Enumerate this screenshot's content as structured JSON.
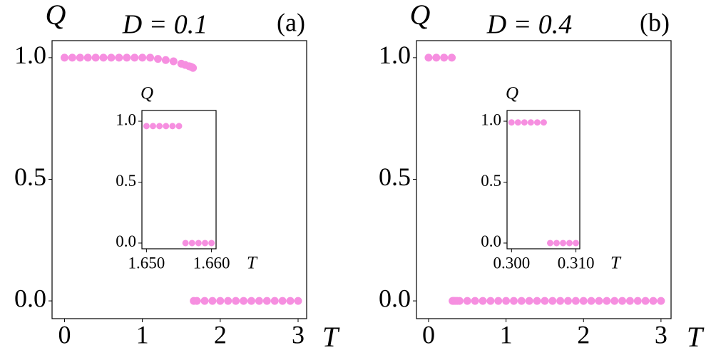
{
  "chart_data": [
    {
      "type": "scatter",
      "title": "D = 0.1",
      "panel": "(a)",
      "ylabel": "Q",
      "xlabel": "T",
      "color": "#f68fe0",
      "x": [
        0,
        0.1,
        0.2,
        0.3,
        0.4,
        0.5,
        0.6,
        0.7,
        0.8,
        0.9,
        1.0,
        1.1,
        1.2,
        1.3,
        1.4,
        1.5,
        1.55,
        1.6,
        1.62,
        1.64,
        1.65,
        1.66,
        1.7,
        1.8,
        1.9,
        2.0,
        2.1,
        2.2,
        2.3,
        2.4,
        2.5,
        2.6,
        2.7,
        2.8,
        2.9,
        3.0
      ],
      "values": [
        1,
        1,
        1,
        1,
        1,
        1,
        1,
        1,
        1,
        1,
        1,
        1,
        0.995,
        0.99,
        0.985,
        0.975,
        0.97,
        0.965,
        0.963,
        0.96,
        0.958,
        0,
        0,
        0,
        0,
        0,
        0,
        0,
        0,
        0,
        0,
        0,
        0,
        0,
        0,
        0
      ],
      "xlim": [
        -0.16,
        3.11
      ],
      "ylim": [
        -0.073,
        1.07
      ],
      "xticks": [
        0,
        1,
        2,
        3
      ],
      "yticks": [
        {
          "value": 0,
          "label": "0.0"
        },
        {
          "value": 0.5,
          "label": "0.5"
        },
        {
          "value": 1,
          "label": "1.0"
        }
      ]
    },
    {
      "type": "scatter",
      "ylabel": "Q",
      "xlabel": "T",
      "color": "#f68fe0",
      "x": [
        1.65,
        1.651,
        1.652,
        1.653,
        1.654,
        1.655,
        1.656,
        1.657,
        1.658,
        1.659,
        1.66
      ],
      "values": [
        0.96,
        0.96,
        0.96,
        0.96,
        0.96,
        0.96,
        0,
        0,
        0,
        0,
        0
      ],
      "xlim": [
        1.6493,
        1.6607
      ],
      "ylim": [
        -0.047,
        1.088
      ],
      "xticks": [
        {
          "value": 1.65,
          "label": "1.650"
        },
        {
          "value": 1.66,
          "label": "1.660"
        }
      ],
      "yticks": [
        {
          "value": 0,
          "label": "0.0"
        },
        {
          "value": 0.5,
          "label": "0.5"
        },
        {
          "value": 1,
          "label": "1.0"
        }
      ]
    },
    {
      "type": "scatter",
      "title": "D = 0.4",
      "panel": "(b)",
      "ylabel": "Q",
      "xlabel": "T",
      "color": "#f68fe0",
      "x": [
        0,
        0.1,
        0.2,
        0.3,
        0.31,
        0.32,
        0.33,
        0.35,
        0.37,
        0.4,
        0.5,
        0.6,
        0.7,
        0.8,
        0.9,
        1.0,
        1.1,
        1.2,
        1.3,
        1.4,
        1.5,
        1.6,
        1.7,
        1.8,
        1.9,
        2.0,
        2.1,
        2.2,
        2.3,
        2.4,
        2.5,
        2.6,
        2.7,
        2.8,
        2.9,
        3.0
      ],
      "values": [
        1,
        1,
        1,
        1,
        0,
        0,
        0,
        0,
        0,
        0,
        0,
        0,
        0,
        0,
        0,
        0,
        0,
        0,
        0,
        0,
        0,
        0,
        0,
        0,
        0,
        0,
        0,
        0,
        0,
        0,
        0,
        0,
        0,
        0,
        0,
        0
      ],
      "xlim": [
        -0.156,
        3.13
      ],
      "ylim": [
        -0.073,
        1.07
      ],
      "xticks": [
        0,
        1,
        2,
        3
      ],
      "yticks": [
        {
          "value": 0,
          "label": "0.0"
        },
        {
          "value": 0.5,
          "label": "0.5"
        },
        {
          "value": 1,
          "label": "1.0"
        }
      ]
    },
    {
      "type": "scatter",
      "ylabel": "Q",
      "xlabel": "T",
      "color": "#f68fe0",
      "x": [
        0.3,
        0.301,
        0.302,
        0.303,
        0.304,
        0.305,
        0.306,
        0.307,
        0.308,
        0.309,
        0.31
      ],
      "values": [
        0.99,
        0.99,
        0.99,
        0.99,
        0.99,
        0.99,
        0,
        0,
        0,
        0,
        0
      ],
      "xlim": [
        0.2993,
        0.3106
      ],
      "ylim": [
        -0.047,
        1.088
      ],
      "xticks": [
        {
          "value": 0.3,
          "label": "0.300"
        },
        {
          "value": 0.31,
          "label": "0.310"
        }
      ],
      "yticks": [
        {
          "value": 0,
          "label": "0.0"
        },
        {
          "value": 0.5,
          "label": "0.5"
        },
        {
          "value": 1,
          "label": "1.0"
        }
      ]
    }
  ]
}
